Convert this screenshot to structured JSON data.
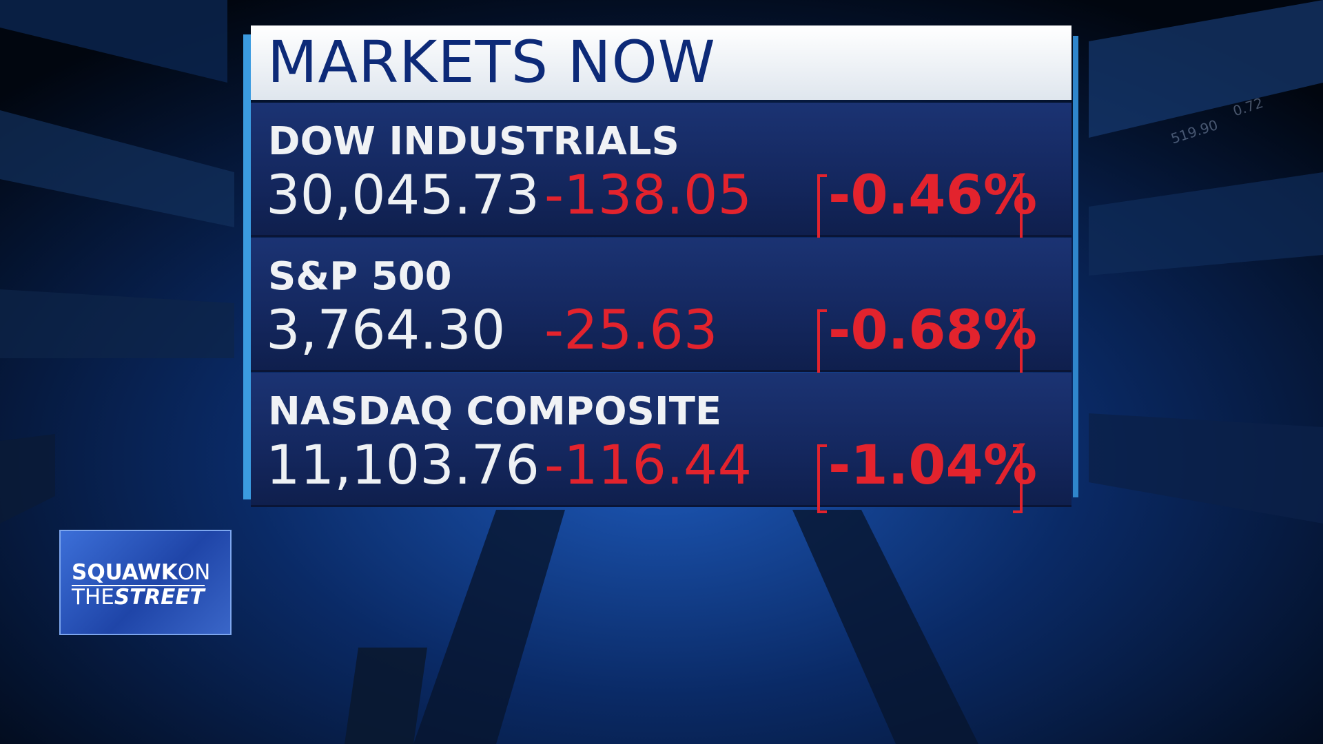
{
  "header": {
    "title": "MARKETS NOW"
  },
  "rows": [
    {
      "name": "DOW INDUSTRIALS",
      "value": "30,045.73",
      "change": "-138.05",
      "percent": "-0.46%"
    },
    {
      "name": "S&P 500",
      "value": "3,764.30",
      "change": "-25.63",
      "percent": "-0.68%"
    },
    {
      "name": "NASDAQ COMPOSITE",
      "value": "11,103.76",
      "change": "-116.44",
      "percent": "-1.04%"
    }
  ],
  "background_ticker": [
    "519.90",
    "0.72"
  ],
  "logo": {
    "line1": [
      "SQUAWK",
      "ON"
    ],
    "line2": [
      "THE",
      "STREET"
    ]
  }
}
